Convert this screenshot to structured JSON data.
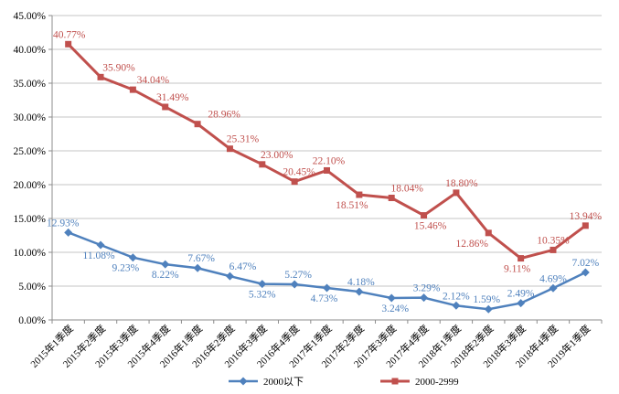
{
  "chart_data": {
    "type": "line",
    "title": "",
    "xlabel": "",
    "ylabel": "",
    "ylim": [
      0,
      45
    ],
    "ytick_step": 5,
    "ytick_labels": [
      "0.00%",
      "5.00%",
      "10.00%",
      "15.00%",
      "20.00%",
      "25.00%",
      "30.00%",
      "35.00%",
      "40.00%",
      "45.00%"
    ],
    "grid": true,
    "legend_position": "bottom",
    "categories": [
      "2015年1季度",
      "2015年2季度",
      "2015年3季度",
      "2015年4季度",
      "2016年1季度",
      "2016年2季度",
      "2016年3季度",
      "2016年4季度",
      "2017年1季度",
      "2017年2季度",
      "2017年3季度",
      "2017年4季度",
      "2018年1季度",
      "2018年2季度",
      "2018年3季度",
      "2018年4季度",
      "2019年1季度"
    ],
    "series": [
      {
        "name": "2000以下",
        "color": "#4f81bd",
        "marker": "diamond",
        "values": [
          12.93,
          11.08,
          9.23,
          8.22,
          7.67,
          6.47,
          5.32,
          5.27,
          4.73,
          4.18,
          3.24,
          3.29,
          2.12,
          1.59,
          2.49,
          4.69,
          7.02
        ],
        "labels": [
          {
            "t": "12.93%",
            "p": "above",
            "dx": -6
          },
          {
            "t": "11.08%",
            "p": "below",
            "dx": -2
          },
          {
            "t": "9.23%",
            "p": "below",
            "dx": -8
          },
          {
            "t": "8.22%",
            "p": "below",
            "dx": 0
          },
          {
            "t": "7.67%",
            "p": "above",
            "dx": 4
          },
          {
            "t": "6.47%",
            "p": "above",
            "dx": 14
          },
          {
            "t": "5.32%",
            "p": "below",
            "dx": 0
          },
          {
            "t": "5.27%",
            "p": "above",
            "dx": 4
          },
          {
            "t": "4.73%",
            "p": "below",
            "dx": -3
          },
          {
            "t": "4.18%",
            "p": "above",
            "dx": 2
          },
          {
            "t": "3.24%",
            "p": "below",
            "dx": 4
          },
          {
            "t": "3.29%",
            "p": "above",
            "dx": 3
          },
          {
            "t": "2.12%",
            "p": "above",
            "dx": 0
          },
          {
            "t": "1.59%",
            "p": "above",
            "dx": -2
          },
          {
            "t": "2.49%",
            "p": "above",
            "dx": 0
          },
          {
            "t": "4.69%",
            "p": "above",
            "dx": 0
          },
          {
            "t": "7.02%",
            "p": "above",
            "dx": 0
          }
        ]
      },
      {
        "name": "2000-2999",
        "color": "#c0504d",
        "marker": "square",
        "values": [
          40.77,
          35.9,
          34.04,
          31.49,
          28.96,
          25.31,
          23.0,
          20.45,
          22.1,
          18.51,
          18.04,
          15.46,
          18.8,
          12.86,
          9.11,
          10.35,
          13.94
        ],
        "labels": [
          {
            "t": "40.77%",
            "p": "above",
            "dx": 1
          },
          {
            "t": "35.90%",
            "p": "above",
            "dx": 20
          },
          {
            "t": "34.04%",
            "p": "above",
            "dx": 22
          },
          {
            "t": "31.49%",
            "p": "above",
            "dx": 8
          },
          {
            "t": "28.96%",
            "p": "above",
            "dx": 29
          },
          {
            "t": "25.31%",
            "p": "above",
            "dx": 14
          },
          {
            "t": "23.00%",
            "p": "above",
            "dx": 16
          },
          {
            "t": "20.45%",
            "p": "above",
            "dx": 5
          },
          {
            "t": "22.10%",
            "p": "above",
            "dx": 2
          },
          {
            "t": "18.51%",
            "p": "below",
            "dx": -8
          },
          {
            "t": "18.04%",
            "p": "above",
            "dx": 17
          },
          {
            "t": "15.46%",
            "p": "below",
            "dx": 7
          },
          {
            "t": "18.80%",
            "p": "above",
            "dx": 6
          },
          {
            "t": "12.86%",
            "p": "below",
            "dx": -18
          },
          {
            "t": "9.11%",
            "p": "below",
            "dx": -4
          },
          {
            "t": "10.35%",
            "p": "above",
            "dx": 0
          },
          {
            "t": "13.94%",
            "p": "above",
            "dx": 0
          }
        ]
      }
    ],
    "colors": {
      "grid": "#c6c6c6",
      "axis": "#8c8c8c",
      "text": "#000000",
      "background": "#ffffff"
    }
  }
}
